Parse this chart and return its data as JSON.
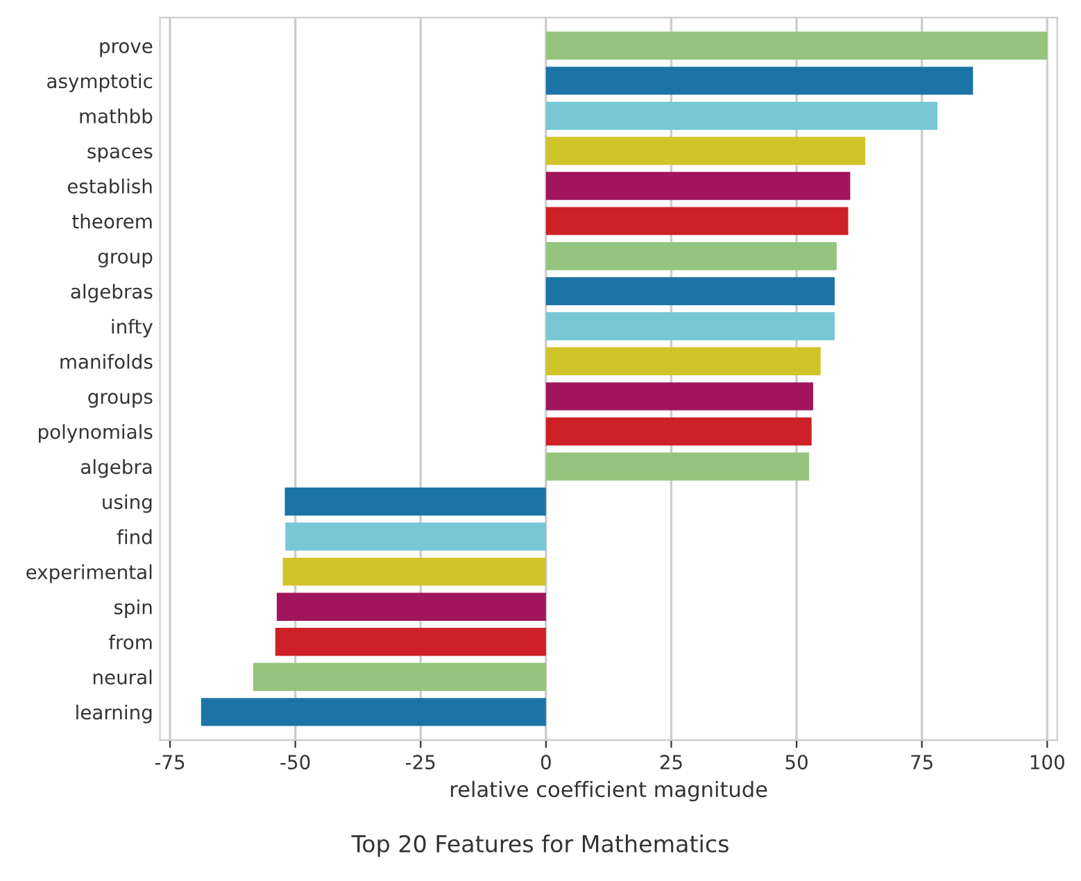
{
  "chart_data": {
    "type": "bar",
    "orientation": "horizontal",
    "title": "Top 20 Features for Mathematics",
    "xlabel": "relative coefficient magnitude",
    "categories": [
      "prove",
      "asymptotic",
      "mathbb",
      "spaces",
      "establish",
      "theorem",
      "group",
      "algebras",
      "infty",
      "manifolds",
      "groups",
      "polynomials",
      "algebra",
      "using",
      "find",
      "experimental",
      "spin",
      "from",
      "neural",
      "learning"
    ],
    "values": [
      100,
      85.2,
      78.1,
      63.7,
      60.7,
      60.3,
      58.0,
      57.6,
      57.6,
      54.8,
      53.3,
      53.0,
      52.5,
      -52.1,
      -52.0,
      -52.5,
      -53.7,
      -54.0,
      -58.4,
      -68.8
    ],
    "colors": [
      "#95c47e",
      "#1b74a5",
      "#77c7d5",
      "#d1c42b",
      "#a0155c",
      "#cd2027",
      "#95c47e",
      "#1b74a5",
      "#77c7d5",
      "#d1c42b",
      "#a0155c",
      "#cd2027",
      "#95c47e",
      "#1b74a5",
      "#77c7d5",
      "#d1c42b",
      "#a0155c",
      "#cd2027",
      "#95c47e",
      "#1b74a5"
    ],
    "xlim": [
      -77,
      102
    ],
    "xticks": [
      -75,
      -50,
      -25,
      0,
      25,
      50,
      75,
      100
    ],
    "grid": "x"
  }
}
